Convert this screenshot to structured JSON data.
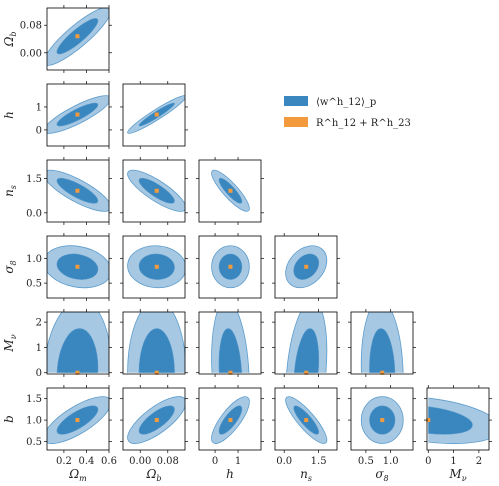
{
  "chart_data": {
    "type": "scatter",
    "subtype": "corner-plot",
    "parameters": [
      {
        "key": "Om",
        "label": "Ω_m",
        "fiducial": 0.32,
        "range": [
          0.05,
          0.6
        ],
        "ticks": [
          0.2,
          0.4,
          0.6
        ],
        "tick_labels": [
          "0.2",
          "0.4",
          "0.6"
        ]
      },
      {
        "key": "Ob",
        "label": "Ω_b",
        "fiducial": 0.048,
        "range": [
          -0.05,
          0.13
        ],
        "ticks": [
          0.0,
          0.08
        ],
        "tick_labels": [
          "0.00",
          "0.08"
        ]
      },
      {
        "key": "h",
        "label": "h",
        "fiducial": 0.67,
        "range": [
          -0.7,
          2.0
        ],
        "ticks": [
          0,
          1
        ],
        "tick_labels": [
          "0",
          "1"
        ]
      },
      {
        "key": "ns",
        "label": "n_s",
        "fiducial": 0.96,
        "range": [
          -0.4,
          2.3
        ],
        "ticks": [
          0.0,
          1.5
        ],
        "y_ticks": [
          0.0,
          1.5
        ],
        "x_ticks": [
          0.0,
          1.5
        ],
        "tick_labels": [
          "0.0",
          "1.5"
        ],
        "y_tick_labels": [
          "0.0",
          "1.5"
        ]
      },
      {
        "key": "s8",
        "label": "σ_8",
        "fiducial": 0.83,
        "range": [
          0.2,
          1.45
        ],
        "ticks": [
          0.5,
          1.0
        ],
        "tick_labels": [
          "0.5",
          "1.0"
        ]
      },
      {
        "key": "Mnu",
        "label": "M_ν",
        "fiducial": 0.0,
        "range": [
          -0.05,
          2.4
        ],
        "ticks": [
          0,
          1,
          2
        ],
        "tick_labels": [
          "0",
          "1",
          "2"
        ]
      },
      {
        "key": "b",
        "label": "b",
        "fiducial": 1.0,
        "range": [
          0.3,
          1.75
        ],
        "ticks": [
          0.5,
          1.0,
          1.5
        ],
        "tick_labels": [
          "0.5",
          "1.0",
          "1.5"
        ]
      }
    ],
    "x_axis_tick_labels": {
      "Om": [
        "0.2",
        "0.4",
        "0.6"
      ],
      "Ob": [
        "0.00",
        "0.08"
      ],
      "h": [
        "0",
        "1"
      ],
      "ns": [
        "0.0",
        "1.5"
      ],
      "s8": [
        "0.5",
        "1.0"
      ],
      "Mnu": [
        "0",
        "1",
        "2"
      ]
    },
    "y_axis_tick_labels": {
      "Ob": [
        "0.00",
        "0.08"
      ],
      "h": [
        "0",
        "1"
      ],
      "ns": [
        "0.0",
        "1.5"
      ],
      "s8": [
        "0.5",
        "1.0"
      ],
      "Mnu": [
        "0",
        "1",
        "2"
      ],
      "b": [
        "0.5",
        "1.0",
        "1.5"
      ]
    },
    "panels": [
      {
        "x": "Om",
        "y": "Ob",
        "sigma_x": 0.12,
        "sigma_y": 0.034,
        "corr": 0.88
      },
      {
        "x": "Om",
        "y": "h",
        "sigma_x": 0.12,
        "sigma_y": 0.33,
        "corr": 0.85
      },
      {
        "x": "Ob",
        "y": "h",
        "sigma_x": 0.034,
        "sigma_y": 0.33,
        "corr": 0.95
      },
      {
        "x": "Om",
        "y": "ns",
        "sigma_x": 0.12,
        "sigma_y": 0.36,
        "corr": -0.8
      },
      {
        "x": "Ob",
        "y": "ns",
        "sigma_x": 0.034,
        "sigma_y": 0.36,
        "corr": -0.82
      },
      {
        "x": "h",
        "y": "ns",
        "sigma_x": 0.33,
        "sigma_y": 0.36,
        "corr": -0.86
      },
      {
        "x": "Om",
        "y": "s8",
        "sigma_x": 0.12,
        "sigma_y": 0.17,
        "corr": -0.2
      },
      {
        "x": "Ob",
        "y": "s8",
        "sigma_x": 0.034,
        "sigma_y": 0.17,
        "corr": -0.05
      },
      {
        "x": "h",
        "y": "s8",
        "sigma_x": 0.33,
        "sigma_y": 0.17,
        "corr": 0.0
      },
      {
        "x": "ns",
        "y": "s8",
        "sigma_x": 0.36,
        "sigma_y": 0.17,
        "corr": 0.3
      },
      {
        "x": "Om",
        "y": "Mnu",
        "sigma_x": 0.12,
        "sigma_y": 1.15,
        "corr": 0.1,
        "truncate_below": 0.0
      },
      {
        "x": "Ob",
        "y": "Mnu",
        "sigma_x": 0.034,
        "sigma_y": 1.15,
        "corr": 0.0,
        "truncate_below": 0.0
      },
      {
        "x": "h",
        "y": "Mnu",
        "sigma_x": 0.33,
        "sigma_y": 1.15,
        "corr": -0.2,
        "truncate_below": 0.0
      },
      {
        "x": "ns",
        "y": "Mnu",
        "sigma_x": 0.36,
        "sigma_y": 1.15,
        "corr": 0.3,
        "truncate_below": 0.0
      },
      {
        "x": "s8",
        "y": "Mnu",
        "sigma_x": 0.17,
        "sigma_y": 1.15,
        "corr": -0.1,
        "truncate_below": 0.0
      },
      {
        "x": "Om",
        "y": "b",
        "sigma_x": 0.12,
        "sigma_y": 0.22,
        "corr": 0.75
      },
      {
        "x": "Ob",
        "y": "b",
        "sigma_x": 0.034,
        "sigma_y": 0.22,
        "corr": 0.75
      },
      {
        "x": "h",
        "y": "b",
        "sigma_x": 0.33,
        "sigma_y": 0.22,
        "corr": 0.78
      },
      {
        "x": "ns",
        "y": "b",
        "sigma_x": 0.36,
        "sigma_y": 0.22,
        "corr": -0.85
      },
      {
        "x": "s8",
        "y": "b",
        "sigma_x": 0.17,
        "sigma_y": 0.22,
        "corr": 0.0
      },
      {
        "x": "Mnu",
        "y": "b",
        "sigma_x": 1.15,
        "sigma_y": 0.22,
        "corr": -0.35,
        "truncate_left": 0.0
      }
    ],
    "contour_levels": [
      1,
      2
    ],
    "legend": {
      "placement": "upper-right",
      "entries": [
        {
          "label": "⟨w^h_12⟩_p",
          "color": "#3a87c0"
        },
        {
          "label": "R^h_12 + R^h_23",
          "color": "#f39b3c"
        }
      ]
    },
    "colors": {
      "contour_inner": "#3a87c0",
      "contour_outer": "#a6c8e3",
      "contour_edge": "#5c9ccc",
      "fiducial_marker": "#f39b3c",
      "axes": "#000000"
    }
  }
}
